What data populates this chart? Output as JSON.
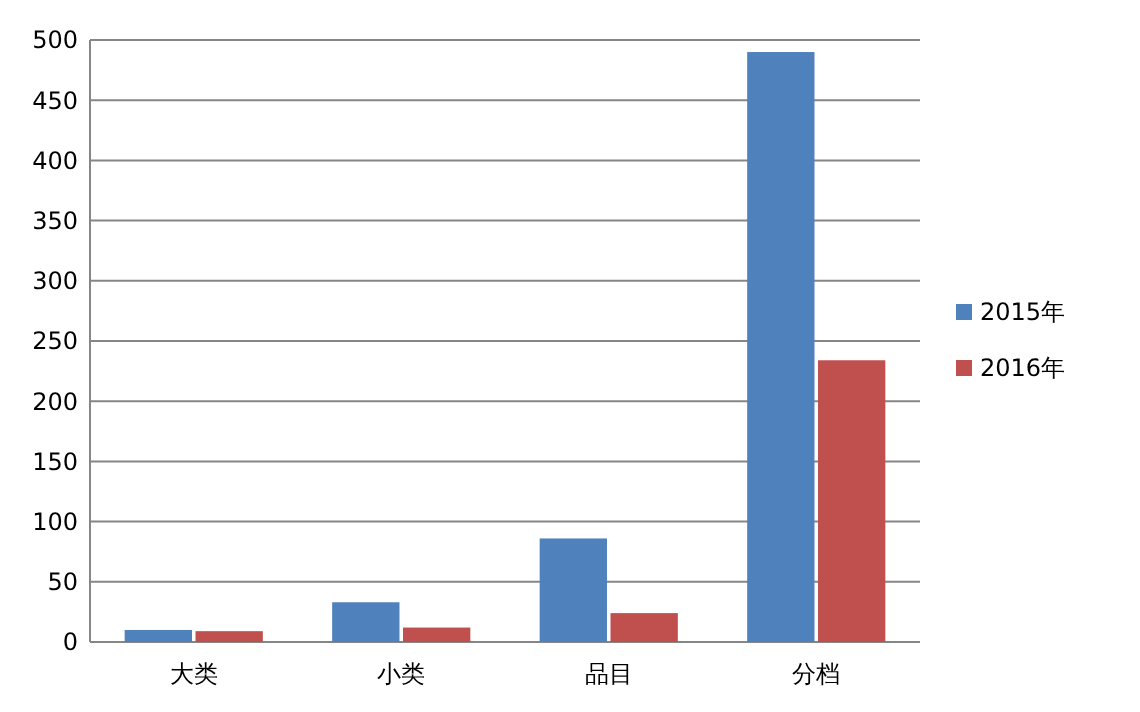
{
  "chart_data": {
    "type": "bar",
    "categories": [
      "大类",
      "小类",
      "品目",
      "分档"
    ],
    "series": [
      {
        "name": "2015年",
        "color": "#4f81bd",
        "values": [
          10,
          33,
          86,
          490
        ]
      },
      {
        "name": "2016年",
        "color": "#c0504d",
        "values": [
          9,
          12,
          24,
          234
        ]
      }
    ],
    "ylim": [
      0,
      500
    ],
    "yticks": [
      0,
      50,
      100,
      150,
      200,
      250,
      300,
      350,
      400,
      450,
      500
    ],
    "grid": "y",
    "legend": "right"
  }
}
